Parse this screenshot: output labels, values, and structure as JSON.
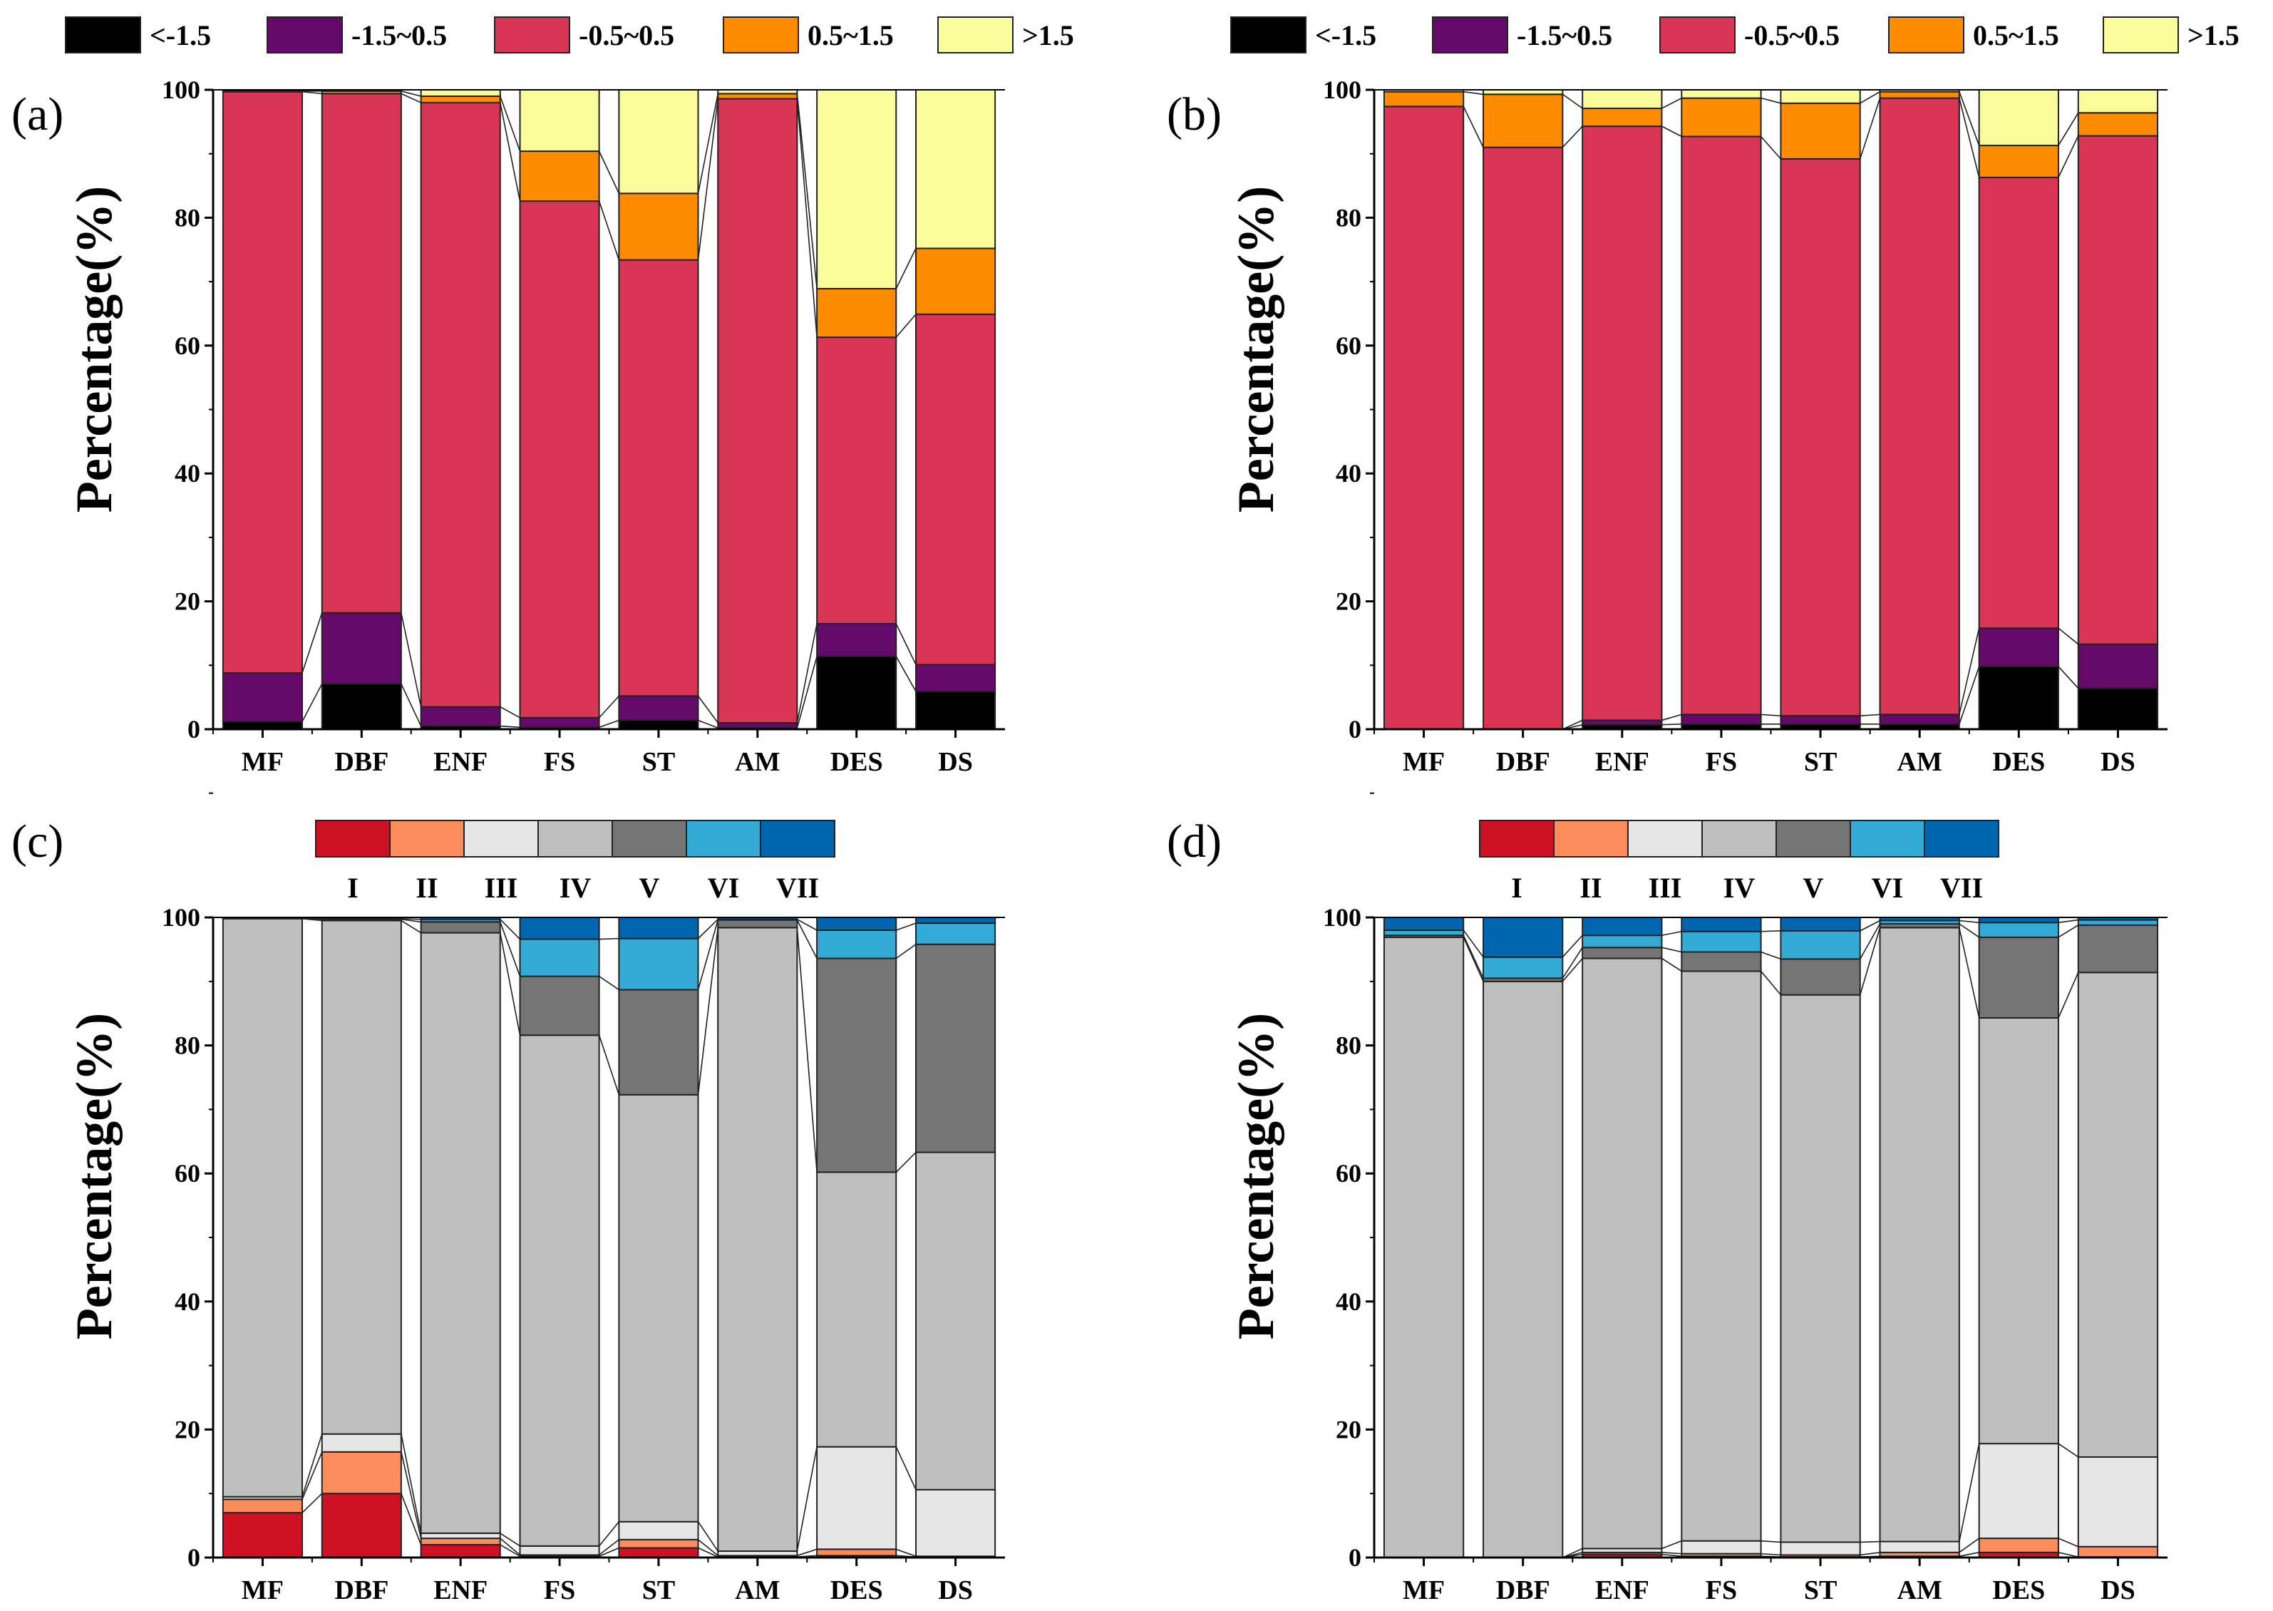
{
  "chart_data": [
    {
      "type": "bar",
      "stacked": true,
      "panel_label": "(a)",
      "ylabel": "Percentage(%)",
      "ylim": [
        0,
        100
      ],
      "yticks": [
        0,
        20,
        40,
        60,
        80,
        100
      ],
      "categories": [
        "MF",
        "DBF",
        "ENF",
        "FS",
        "ST",
        "AM",
        "DES",
        "DS"
      ],
      "legend_placement": "top",
      "series": [
        {
          "name": "<-1.5",
          "color": "#000000",
          "values": [
            1.2,
            7.1,
            0.5,
            0.3,
            1.4,
            0.2,
            11.4,
            5.9
          ]
        },
        {
          "name": "-1.5~0.5",
          "color": "#650a6b",
          "values": [
            7.6,
            11.1,
            3.0,
            1.5,
            3.8,
            0.8,
            5.1,
            4.2
          ]
        },
        {
          "name": "-0.5~0.5",
          "color": "#d93655",
          "values": [
            90.9,
            81.2,
            94.5,
            80.8,
            68.2,
            97.6,
            44.8,
            54.8
          ]
        },
        {
          "name": "0.5~1.5",
          "color": "#ff8c00",
          "values": [
            0.1,
            0.4,
            1.0,
            7.8,
            10.4,
            0.8,
            7.6,
            10.3
          ]
        },
        {
          "name": ">1.5",
          "color": "#fafc9c",
          "values": [
            0.2,
            0.2,
            1.0,
            9.6,
            16.2,
            0.6,
            31.1,
            24.8
          ]
        }
      ]
    },
    {
      "type": "bar",
      "stacked": true,
      "panel_label": "(b)",
      "ylabel": "Percentage(%)",
      "ylim": [
        0,
        100
      ],
      "yticks": [
        0,
        20,
        40,
        60,
        80,
        100
      ],
      "categories": [
        "MF",
        "DBF",
        "ENF",
        "FS",
        "ST",
        "AM",
        "DES",
        "DS"
      ],
      "legend_placement": "top",
      "series": [
        {
          "name": "<-1.5",
          "color": "#000000",
          "values": [
            0,
            0,
            0.7,
            0.8,
            0.8,
            0.8,
            9.8,
            6.4
          ]
        },
        {
          "name": "-1.5~0.5",
          "color": "#650a6b",
          "values": [
            0,
            0,
            0.7,
            1.5,
            1.3,
            1.5,
            6.0,
            6.9
          ]
        },
        {
          "name": "-0.5~0.5",
          "color": "#d93655",
          "values": [
            97.4,
            91.0,
            92.9,
            90.4,
            87.1,
            96.4,
            70.5,
            79.5
          ]
        },
        {
          "name": "0.5~1.5",
          "color": "#ff8c00",
          "values": [
            2.3,
            8.3,
            2.8,
            6.0,
            8.7,
            1.0,
            5.0,
            3.6
          ]
        },
        {
          "name": ">1.5",
          "color": "#fafc9c",
          "values": [
            0.3,
            0.7,
            2.9,
            1.3,
            2.1,
            0.3,
            8.7,
            3.6
          ]
        }
      ]
    },
    {
      "type": "bar",
      "stacked": true,
      "panel_label": "(c)",
      "ylabel": "Percentage(%)",
      "ylim": [
        0,
        100
      ],
      "yticks": [
        0,
        20,
        40,
        60,
        80,
        100
      ],
      "categories": [
        "MF",
        "DBF",
        "ENF",
        "FS",
        "ST",
        "AM",
        "DES",
        "DS"
      ],
      "legend_placement": "top",
      "series": [
        {
          "name": "I",
          "color": "#cf1126",
          "values": [
            7.0,
            10.0,
            2.0,
            0.2,
            1.5,
            0.1,
            0.3,
            0.1
          ]
        },
        {
          "name": "II",
          "color": "#fc8c5c",
          "values": [
            2.1,
            6.5,
            1.0,
            0.2,
            1.3,
            0.2,
            1.0,
            0.1
          ]
        },
        {
          "name": "III",
          "color": "#e6e6e6",
          "values": [
            0.4,
            2.8,
            0.8,
            1.4,
            2.8,
            0.7,
            16.0,
            10.4
          ]
        },
        {
          "name": "IV",
          "color": "#bfbfbf",
          "values": [
            90.3,
            80.2,
            93.8,
            79.8,
            66.7,
            97.4,
            42.9,
            52.7
          ]
        },
        {
          "name": "V",
          "color": "#757575",
          "values": [
            0.1,
            0.2,
            1.7,
            9.2,
            16.4,
            1.2,
            33.4,
            32.5
          ]
        },
        {
          "name": "VI",
          "color": "#33abd6",
          "values": [
            0.0,
            0.1,
            0.4,
            5.8,
            8.0,
            0.1,
            4.4,
            3.3
          ]
        },
        {
          "name": "VII",
          "color": "#0066b0",
          "values": [
            0.1,
            0.2,
            0.3,
            3.4,
            3.3,
            0.3,
            2.0,
            0.9
          ]
        }
      ]
    },
    {
      "type": "bar",
      "stacked": true,
      "panel_label": "(d)",
      "ylabel": "Percentage(%)",
      "ylim": [
        0,
        100
      ],
      "yticks": [
        0,
        20,
        40,
        60,
        80,
        100
      ],
      "categories": [
        "MF",
        "DBF",
        "ENF",
        "FS",
        "ST",
        "AM",
        "DES",
        "DS"
      ],
      "legend_placement": "top",
      "series": [
        {
          "name": "I",
          "color": "#cf1126",
          "values": [
            0,
            0,
            0.5,
            0.2,
            0.1,
            0.2,
            0.8,
            0.1
          ]
        },
        {
          "name": "II",
          "color": "#fc8c5c",
          "values": [
            0,
            0,
            0.3,
            0.4,
            0.3,
            0.6,
            2.2,
            1.6
          ]
        },
        {
          "name": "III",
          "color": "#e6e6e6",
          "values": [
            0,
            0,
            0.6,
            2.0,
            2.0,
            1.7,
            14.8,
            14.0
          ]
        },
        {
          "name": "IV",
          "color": "#bfbfbf",
          "values": [
            96.9,
            90.0,
            92.2,
            89.0,
            85.5,
            95.9,
            66.5,
            75.7
          ]
        },
        {
          "name": "V",
          "color": "#757575",
          "values": [
            0.3,
            0.5,
            1.7,
            3.0,
            5.6,
            0.6,
            12.6,
            7.4
          ]
        },
        {
          "name": "VI",
          "color": "#33abd6",
          "values": [
            0.8,
            3.3,
            1.9,
            3.2,
            4.4,
            0.5,
            2.3,
            0.8
          ]
        },
        {
          "name": "VII",
          "color": "#0066b0",
          "values": [
            2.0,
            6.2,
            2.8,
            2.2,
            2.1,
            0.5,
            0.8,
            0.4
          ]
        }
      ]
    }
  ]
}
